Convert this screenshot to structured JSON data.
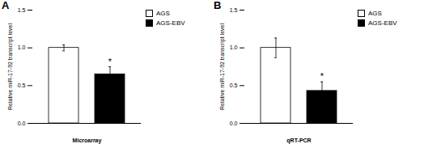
{
  "chart_data": [
    {
      "type": "bar",
      "title": "A",
      "xlabel": "Microarray",
      "ylabel": "Relative miR-17-92 transcript level",
      "categories": [
        null,
        null
      ],
      "series": [
        {
          "name": "AGS",
          "color": "white",
          "values": [
            1.0,
            null
          ],
          "errors": [
            0.04,
            null
          ]
        },
        {
          "name": "AGS-EBV",
          "color": "black",
          "values": [
            null,
            0.65
          ],
          "errors": [
            null,
            0.1
          ]
        }
      ],
      "annotations": [
        {
          "text": "*",
          "x": 1,
          "y": 0.77
        }
      ],
      "ylim": [
        0,
        1.5
      ],
      "yticks": [
        {
          "value": 0.0,
          "label": "0.0"
        },
        {
          "value": 0.5,
          "label": "0.5"
        },
        {
          "value": 1.0,
          "label": "1.0"
        },
        {
          "value": 1.5,
          "label": "1.5"
        }
      ],
      "legend": "upper right",
      "tick_labels": "y"
    },
    {
      "type": "bar",
      "title": "B",
      "xlabel": "qRT-PCR",
      "ylabel": "Relative miR-17-92 transcript level",
      "categories": [
        null,
        null
      ],
      "series": [
        {
          "name": "AGS",
          "color": "white",
          "values": [
            1.0,
            null
          ],
          "errors": [
            0.13,
            null
          ]
        },
        {
          "name": "AGS-EBV",
          "color": "black",
          "values": [
            null,
            0.43
          ],
          "errors": [
            null,
            0.12
          ]
        }
      ],
      "annotations": [
        {
          "text": "*",
          "x": 1,
          "y": 0.57
        }
      ],
      "ylim": [
        0,
        1.5
      ],
      "yticks": [
        {
          "value": 0.0,
          "label": "0.0"
        },
        {
          "value": 0.5,
          "label": "0.5"
        },
        {
          "value": 1.0,
          "label": "1.0"
        },
        {
          "value": 1.5,
          "label": "1.5"
        }
      ],
      "legend": "upper right",
      "tick_labels": "y"
    }
  ]
}
